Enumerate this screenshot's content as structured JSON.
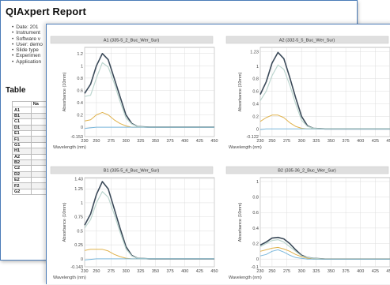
{
  "report": {
    "title": "QIAxpert Report",
    "meta": [
      "Date: 201",
      "Instrument",
      "Software v",
      "User: demo",
      "Slide type",
      "Experimen",
      "Application"
    ],
    "table_title": "Table",
    "table_header": "Na",
    "table_rows": [
      "A1",
      "B1",
      "C1",
      "D1",
      "E1",
      "F1",
      "G1",
      "H1",
      "A2",
      "B2",
      "C2",
      "D2",
      "E2",
      "F2",
      "G2"
    ]
  },
  "colors": {
    "accent": "#4a7bb7",
    "measured": "#3b4a59",
    "fit_dna": "#bcd6cf",
    "residual": "#e0b24c",
    "impurity": "#7bb8dc",
    "grid": "#dddddd",
    "title_bar": "#dfdfdf"
  },
  "chart_data": [
    {
      "type": "line",
      "title": "A1 (335-5_2_Buc_Wer_Sur)",
      "xlabel": "Wavelength (nm)",
      "ylabel": "Absorbance (10mm)",
      "x_ticks": [
        "230",
        "250",
        "275",
        "300",
        "325",
        "350",
        "375",
        "400",
        "425",
        "450"
      ],
      "y_ticks": [
        "-0.153",
        "0",
        "0.2",
        "0.4",
        "0.6",
        "0.8",
        "1",
        "1.2"
      ],
      "xlim": [
        230,
        450
      ],
      "ylim": [
        -0.153,
        1.3
      ],
      "x": [
        230,
        240,
        250,
        260,
        270,
        280,
        290,
        300,
        310,
        320,
        340,
        360,
        400,
        450
      ],
      "series": [
        {
          "values": [
            0.55,
            0.7,
            1.0,
            1.2,
            1.1,
            0.8,
            0.5,
            0.2,
            0.06,
            0.01,
            0,
            0,
            0,
            0
          ]
        },
        {
          "values": [
            0.5,
            0.52,
            0.8,
            1.05,
            0.98,
            0.72,
            0.42,
            0.15,
            0.05,
            0.01,
            0,
            0,
            0,
            0
          ]
        },
        {
          "values": [
            0.1,
            0.12,
            0.2,
            0.24,
            0.2,
            0.12,
            0.06,
            0.02,
            0,
            0,
            0,
            0,
            0,
            0
          ]
        },
        {
          "values": [
            -0.02,
            -0.01,
            0,
            0,
            0,
            0,
            0,
            0,
            0,
            0,
            0,
            0,
            0,
            0
          ]
        }
      ]
    },
    {
      "type": "line",
      "title": "A2 (332-5_5_Buc_Wer_Sur)",
      "xlabel": "Wavelength (nm)",
      "ylabel": "Absorbance (10mm)",
      "x_ticks": [
        "230",
        "250",
        "275",
        "300",
        "325",
        "350",
        "375",
        "400",
        "425",
        "450"
      ],
      "y_ticks": [
        "-0.122",
        "0",
        "0.2",
        "0.4",
        "0.6",
        "0.8",
        "1",
        "1.23"
      ],
      "xlim": [
        230,
        450
      ],
      "ylim": [
        -0.122,
        1.3
      ],
      "x": [
        230,
        240,
        250,
        260,
        270,
        280,
        290,
        300,
        310,
        320,
        340,
        360,
        400,
        450
      ],
      "series": [
        {
          "values": [
            0.55,
            0.75,
            1.05,
            1.22,
            1.12,
            0.82,
            0.5,
            0.2,
            0.05,
            0.01,
            0,
            0,
            0,
            0
          ]
        },
        {
          "values": [
            0.45,
            0.6,
            0.85,
            1.02,
            0.95,
            0.7,
            0.4,
            0.14,
            0.04,
            0.01,
            0,
            0,
            0,
            0
          ]
        },
        {
          "values": [
            0.12,
            0.18,
            0.22,
            0.22,
            0.18,
            0.1,
            0.04,
            0.01,
            0,
            0,
            0,
            0,
            0,
            0
          ]
        },
        {
          "values": [
            -0.01,
            0,
            0,
            0,
            0,
            0,
            0,
            0,
            0,
            0,
            0,
            0,
            0,
            0
          ]
        }
      ]
    },
    {
      "type": "line",
      "title": "B1 (335-5_4_Buc_Wer_Sur)",
      "xlabel": "Wavelength (nm)",
      "ylabel": "Absorbance (10mm)",
      "x_ticks": [
        "230",
        "250",
        "275",
        "300",
        "325",
        "350",
        "375",
        "400",
        "425",
        "450"
      ],
      "y_ticks": [
        "-0.143",
        "0",
        "0.25",
        "0.5",
        "0.75",
        "1",
        "1.25",
        "1.43"
      ],
      "xlim": [
        230,
        450
      ],
      "ylim": [
        -0.143,
        1.45
      ],
      "x": [
        230,
        240,
        250,
        260,
        270,
        280,
        290,
        300,
        310,
        320,
        340,
        360,
        400,
        450
      ],
      "series": [
        {
          "values": [
            0.6,
            0.8,
            1.15,
            1.38,
            1.25,
            0.9,
            0.55,
            0.22,
            0.06,
            0.01,
            0,
            0,
            0,
            0
          ]
        },
        {
          "values": [
            0.55,
            0.7,
            1.0,
            1.2,
            1.1,
            0.8,
            0.48,
            0.18,
            0.05,
            0.01,
            0,
            0,
            0,
            0
          ]
        },
        {
          "values": [
            0.15,
            0.17,
            0.17,
            0.17,
            0.14,
            0.08,
            0.04,
            0.01,
            0,
            0,
            0,
            0,
            0,
            0
          ]
        },
        {
          "values": [
            -0.02,
            -0.01,
            0,
            0,
            0,
            0,
            0,
            0,
            0,
            0,
            0,
            0,
            0,
            0
          ]
        }
      ]
    },
    {
      "type": "line",
      "title": "B2 (335-36_2_Buc_Wer_Sur)",
      "xlabel": "Wavelength (nm)",
      "ylabel": "Absorbance (10mm)",
      "x_ticks": [
        "230",
        "250",
        "275",
        "300",
        "325",
        "350",
        "375",
        "400",
        "425",
        "450"
      ],
      "y_ticks": [
        "-0.1",
        "0",
        "0.2",
        "0.4",
        "0.6",
        "0.8",
        "1"
      ],
      "xlim": [
        230,
        450
      ],
      "ylim": [
        -0.1,
        1.05
      ],
      "x": [
        230,
        240,
        250,
        260,
        270,
        280,
        290,
        300,
        310,
        320,
        340,
        360,
        400,
        450
      ],
      "series": [
        {
          "values": [
            0.18,
            0.22,
            0.27,
            0.28,
            0.26,
            0.2,
            0.12,
            0.05,
            0.02,
            0.01,
            0,
            0,
            0,
            0
          ]
        },
        {
          "values": [
            0.16,
            0.2,
            0.24,
            0.25,
            0.22,
            0.16,
            0.1,
            0.04,
            0.02,
            0.01,
            0,
            0,
            0,
            0
          ]
        },
        {
          "values": [
            0.1,
            0.12,
            0.14,
            0.15,
            0.13,
            0.1,
            0.06,
            0.03,
            0.01,
            0,
            0,
            0,
            0,
            0
          ]
        },
        {
          "values": [
            0.04,
            0.06,
            0.1,
            0.12,
            0.09,
            0.05,
            0.02,
            0.01,
            0,
            0,
            0,
            0,
            0,
            0
          ]
        }
      ]
    }
  ]
}
